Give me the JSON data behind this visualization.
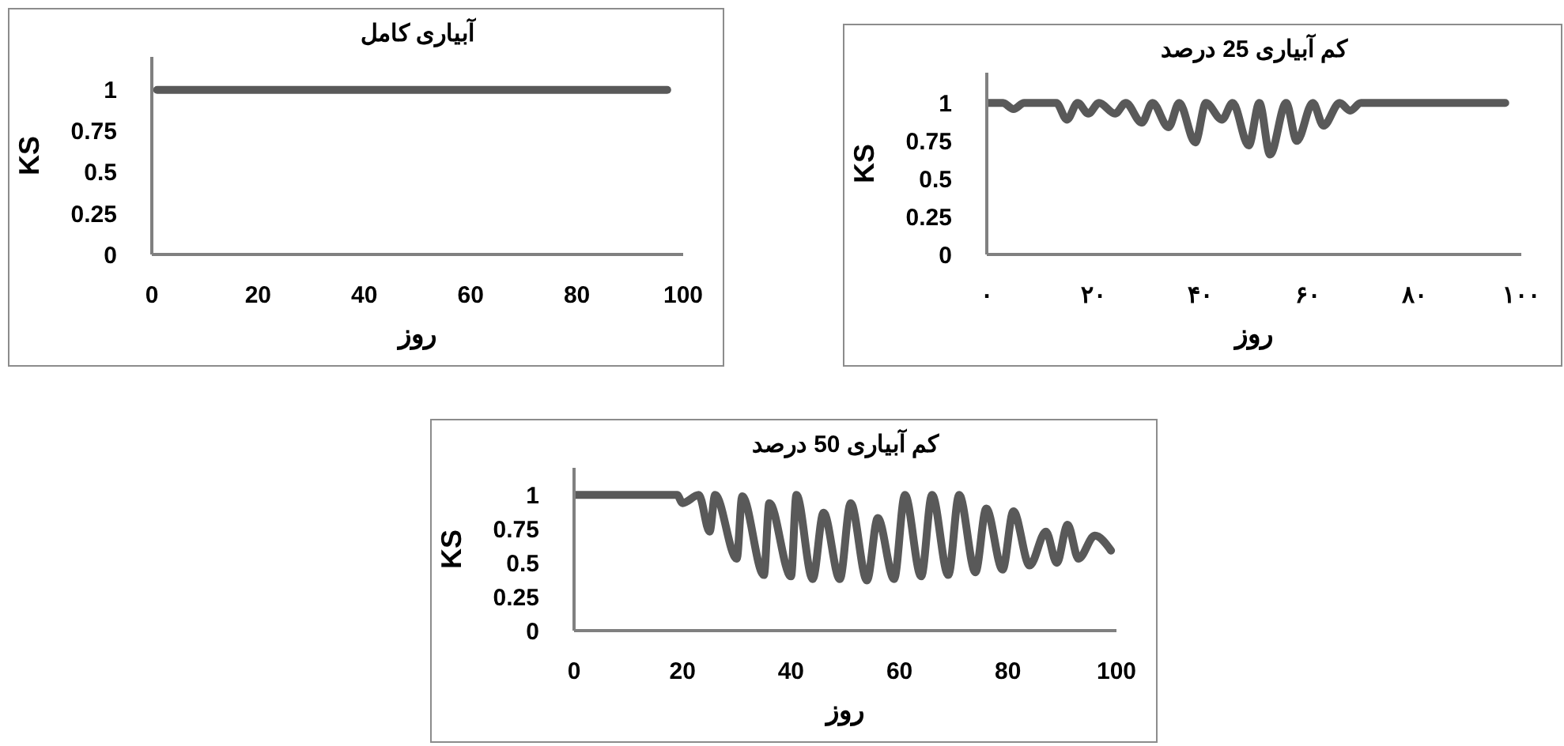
{
  "chart_data": [
    {
      "type": "line",
      "title": "آبیاری کامل",
      "xlabel": "روز",
      "ylabel": "KS",
      "xlim": [
        0,
        100
      ],
      "xticks": [
        0,
        20,
        40,
        60,
        80,
        100
      ],
      "ylim": [
        0,
        1.2
      ],
      "yticks": [
        0,
        0.25,
        0.5,
        0.75,
        1
      ],
      "marker": "none",
      "line_style": "solid",
      "x": [
        1,
        97
      ],
      "series": [
        {
          "color": "#595959",
          "values": [
            1,
            1
          ]
        }
      ]
    },
    {
      "type": "line",
      "title": "کم آبیاری 25 درصد",
      "xlabel": "روز",
      "ylabel": "KS",
      "xlim": [
        0,
        100
      ],
      "xticks": [
        {
          "value": 0,
          "label": "۰"
        },
        {
          "value": 20,
          "label": "۲۰"
        },
        {
          "value": 40,
          "label": "۴۰"
        },
        {
          "value": 60,
          "label": "۶۰"
        },
        {
          "value": 80,
          "label": "۸۰"
        },
        {
          "value": 100,
          "label": "۱۰۰"
        }
      ],
      "ylim": [
        0,
        1.2
      ],
      "yticks": [
        0,
        0.25,
        0.5,
        0.75,
        1
      ],
      "marker": "none",
      "line_style": "solid",
      "x": [
        0,
        3,
        5,
        7,
        13,
        15,
        17,
        19,
        21,
        24,
        26,
        29,
        31,
        34,
        36,
        39,
        41,
        44,
        46,
        49,
        51,
        53,
        56,
        58,
        61,
        63,
        66,
        68,
        70,
        97
      ],
      "series": [
        {
          "color": "#595959",
          "values": [
            1,
            1,
            0.96,
            1,
            1,
            0.89,
            1,
            0.93,
            1,
            0.93,
            1,
            0.87,
            1,
            0.84,
            1,
            0.74,
            1,
            0.89,
            1,
            0.72,
            1,
            0.66,
            1,
            0.75,
            1,
            0.85,
            1,
            0.95,
            1,
            1
          ]
        }
      ]
    },
    {
      "type": "line",
      "title": "کم آبیاری 50 درصد",
      "xlabel": "روز",
      "ylabel": "KS",
      "xlim": [
        0,
        100
      ],
      "xticks": [
        0,
        20,
        40,
        60,
        80,
        100
      ],
      "ylim": [
        0,
        1.2
      ],
      "yticks": [
        0,
        0.25,
        0.5,
        0.75,
        1
      ],
      "marker": "none",
      "line_style": "solid",
      "x": [
        0,
        19,
        20,
        23,
        25,
        26,
        30,
        31,
        35,
        36,
        40,
        41,
        44,
        46,
        49,
        51,
        54,
        56,
        59,
        61,
        64,
        66,
        69,
        71,
        74,
        76,
        79,
        81,
        84,
        87,
        89,
        91,
        93,
        96,
        99
      ],
      "series": [
        {
          "color": "#595959",
          "values": [
            1,
            1,
            0.94,
            1,
            0.73,
            1,
            0.53,
            0.99,
            0.41,
            0.94,
            0.4,
            1,
            0.38,
            0.87,
            0.38,
            0.94,
            0.37,
            0.83,
            0.38,
            1,
            0.4,
            1,
            0.41,
            1,
            0.43,
            0.9,
            0.45,
            0.88,
            0.48,
            0.73,
            0.5,
            0.78,
            0.53,
            0.7,
            0.59
          ]
        }
      ]
    }
  ]
}
